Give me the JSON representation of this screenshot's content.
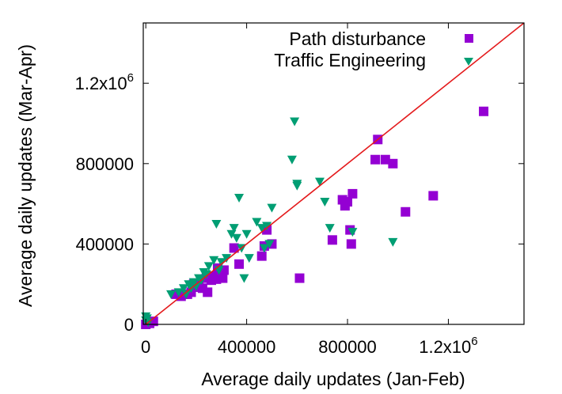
{
  "chart_data": {
    "type": "scatter",
    "title": "",
    "xlabel": "Average daily updates (Jan-Feb)",
    "ylabel": "Average daily updates (Mar-Apr)",
    "xlim": [
      -10000,
      1500000
    ],
    "ylim": [
      0,
      1500000
    ],
    "x_ticks": [
      {
        "value": 0,
        "label": "0"
      },
      {
        "value": 400000,
        "label": "400000"
      },
      {
        "value": 800000,
        "label": "800000"
      },
      {
        "value": 1200000,
        "label": "1.2x10",
        "exp": "6"
      }
    ],
    "y_ticks": [
      {
        "value": 0,
        "label": "0"
      },
      {
        "value": 400000,
        "label": "400000"
      },
      {
        "value": 800000,
        "label": "800000"
      },
      {
        "value": 1200000,
        "label": "1.2x10",
        "exp": "6"
      }
    ],
    "grid": false,
    "legend_position": "top-right",
    "reference_line": {
      "from": [
        0,
        0
      ],
      "to": [
        1500000,
        1500000
      ],
      "color": "#e41a1c"
    },
    "series": [
      {
        "name": "Path disturbance",
        "marker": "square",
        "color": "#9400d3",
        "points": [
          [
            0,
            0
          ],
          [
            15000,
            5000
          ],
          [
            30000,
            15000
          ],
          [
            120000,
            150000
          ],
          [
            140000,
            140000
          ],
          [
            150000,
            150000
          ],
          [
            165000,
            150000
          ],
          [
            180000,
            160000
          ],
          [
            190000,
            200000
          ],
          [
            200000,
            185000
          ],
          [
            210000,
            200000
          ],
          [
            225000,
            180000
          ],
          [
            240000,
            230000
          ],
          [
            245000,
            160000
          ],
          [
            260000,
            220000
          ],
          [
            270000,
            240000
          ],
          [
            280000,
            225000
          ],
          [
            285000,
            280000
          ],
          [
            300000,
            250000
          ],
          [
            305000,
            230000
          ],
          [
            310000,
            270000
          ],
          [
            350000,
            380000
          ],
          [
            370000,
            300000
          ],
          [
            460000,
            340000
          ],
          [
            470000,
            390000
          ],
          [
            480000,
            470000
          ],
          [
            500000,
            400000
          ],
          [
            610000,
            230000
          ],
          [
            740000,
            420000
          ],
          [
            780000,
            620000
          ],
          [
            790000,
            590000
          ],
          [
            800000,
            610000
          ],
          [
            810000,
            470000
          ],
          [
            815000,
            400000
          ],
          [
            820000,
            650000
          ],
          [
            910000,
            820000
          ],
          [
            920000,
            920000
          ],
          [
            950000,
            820000
          ],
          [
            980000,
            800000
          ],
          [
            1030000,
            560000
          ],
          [
            1140000,
            640000
          ],
          [
            1340000,
            1060000
          ]
        ]
      },
      {
        "name": "Traffic Engineering",
        "marker": "triangle-down",
        "color": "#009e73",
        "points": [
          [
            0,
            20000
          ],
          [
            0,
            40000
          ],
          [
            5000,
            30000
          ],
          [
            10000,
            10000
          ],
          [
            100000,
            150000
          ],
          [
            130000,
            160000
          ],
          [
            150000,
            180000
          ],
          [
            160000,
            150000
          ],
          [
            170000,
            200000
          ],
          [
            180000,
            180000
          ],
          [
            190000,
            210000
          ],
          [
            200000,
            190000
          ],
          [
            210000,
            230000
          ],
          [
            220000,
            220000
          ],
          [
            230000,
            260000
          ],
          [
            240000,
            250000
          ],
          [
            250000,
            290000
          ],
          [
            270000,
            320000
          ],
          [
            280000,
            500000
          ],
          [
            290000,
            270000
          ],
          [
            300000,
            310000
          ],
          [
            320000,
            330000
          ],
          [
            340000,
            450000
          ],
          [
            350000,
            480000
          ],
          [
            360000,
            430000
          ],
          [
            370000,
            630000
          ],
          [
            380000,
            380000
          ],
          [
            390000,
            230000
          ],
          [
            400000,
            450000
          ],
          [
            410000,
            330000
          ],
          [
            440000,
            510000
          ],
          [
            460000,
            480000
          ],
          [
            470000,
            380000
          ],
          [
            480000,
            490000
          ],
          [
            490000,
            400000
          ],
          [
            500000,
            580000
          ],
          [
            580000,
            820000
          ],
          [
            590000,
            1010000
          ],
          [
            600000,
            700000
          ],
          [
            600000,
            690000
          ],
          [
            690000,
            710000
          ],
          [
            710000,
            610000
          ],
          [
            730000,
            480000
          ],
          [
            820000,
            460000
          ],
          [
            980000,
            410000
          ]
        ]
      }
    ]
  }
}
